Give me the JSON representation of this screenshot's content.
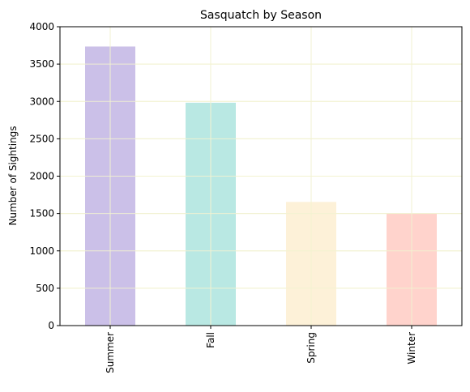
{
  "chart_data": {
    "type": "bar",
    "title": "Sasquatch by Season",
    "xlabel": "",
    "ylabel": "Number of Sightings",
    "categories": [
      "Summer",
      "Fall",
      "Spring",
      "Winter"
    ],
    "values": [
      3735,
      2983,
      1655,
      1496
    ],
    "colors": [
      "#cbc0e8",
      "#b9e8e3",
      "#fdf1d8",
      "#ffd3cc"
    ],
    "ylim": [
      0,
      4000
    ],
    "yticks": [
      "0",
      "500",
      "1000",
      "1500",
      "2000",
      "2500",
      "3000",
      "3500",
      "4000"
    ],
    "grid": true,
    "grid_color": "#f2f2d0",
    "legend": "none"
  }
}
